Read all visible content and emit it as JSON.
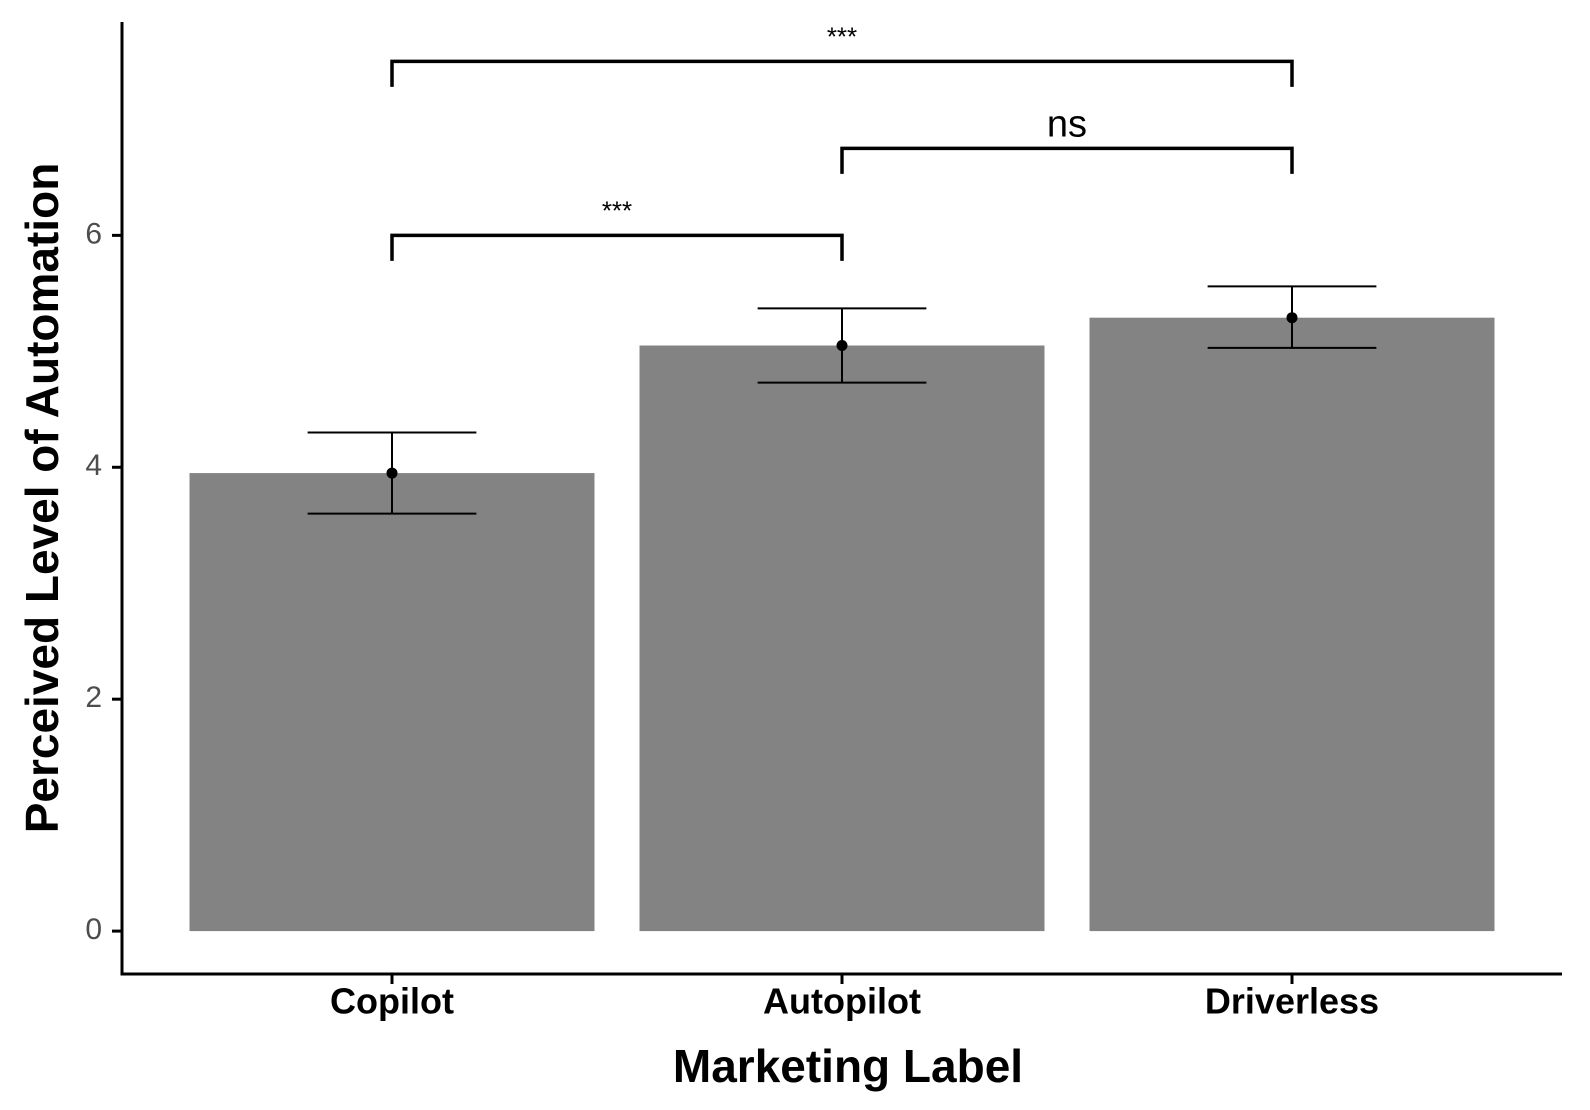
{
  "chart_data": {
    "type": "bar",
    "xlabel": "Marketing Label",
    "ylabel": "Perceived Level of Automation",
    "categories": [
      "Copilot",
      "Autopilot",
      "Driverless"
    ],
    "values": [
      3.95,
      5.05,
      5.29
    ],
    "error_bars": [
      {
        "low": 3.6,
        "high": 4.3
      },
      {
        "low": 4.73,
        "high": 5.37
      },
      {
        "low": 5.03,
        "high": 5.56
      }
    ],
    "yticks": [
      "0",
      "2",
      "4",
      "6"
    ],
    "ylim": [
      -0.37,
      7.84
    ],
    "grid": false,
    "legend": "none",
    "bar_color": "#838383",
    "comparisons": [
      {
        "from": "Copilot",
        "to": "Autopilot",
        "label": "***",
        "y": 6.0
      },
      {
        "from": "Autopilot",
        "to": "Driverless",
        "label": "ns",
        "y": 6.75
      },
      {
        "from": "Copilot",
        "to": "Driverless",
        "label": "***",
        "y": 7.5
      }
    ]
  }
}
